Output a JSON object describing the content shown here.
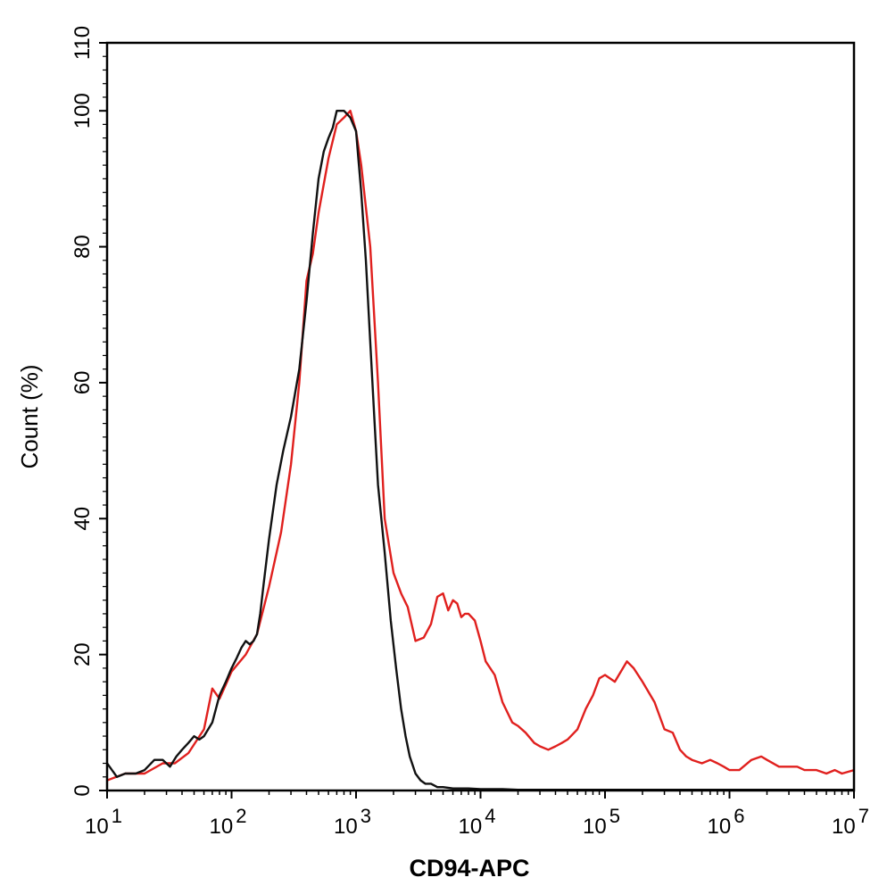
{
  "chart_data": {
    "type": "line",
    "xlabel": "CD94-APC",
    "ylabel": "Count (%)",
    "x_scale": "log",
    "xlim": [
      10,
      10000000
    ],
    "ylim": [
      0,
      110
    ],
    "grid": false,
    "x_ticks": [
      {
        "value": 10,
        "base": "10",
        "exp": "1"
      },
      {
        "value": 100,
        "base": "10",
        "exp": "2"
      },
      {
        "value": 1000,
        "base": "10",
        "exp": "3"
      },
      {
        "value": 10000,
        "base": "10",
        "exp": "4"
      },
      {
        "value": 100000,
        "base": "10",
        "exp": "5"
      },
      {
        "value": 1000000,
        "base": "10",
        "exp": "6"
      },
      {
        "value": 10000000,
        "base": "10",
        "exp": "7"
      }
    ],
    "y_ticks": [
      "0",
      "20",
      "40",
      "60",
      "80",
      "100",
      "110"
    ],
    "series": [
      {
        "color": "#e0201e",
        "x": [
          10,
          14,
          20,
          28,
          35,
          45,
          60,
          70,
          80,
          100,
          130,
          160,
          200,
          250,
          300,
          350,
          400,
          450,
          500,
          600,
          700,
          800,
          900,
          1000,
          1100,
          1300,
          1500,
          1700,
          2000,
          2300,
          2600,
          3000,
          3500,
          4000,
          4500,
          5000,
          5500,
          6000,
          6500,
          7000,
          7500,
          8000,
          9000,
          10000,
          11000,
          13000,
          15000,
          18000,
          20000,
          23000,
          27000,
          30000,
          35000,
          40000,
          45000,
          50000,
          60000,
          70000,
          80000,
          90000,
          100000,
          120000,
          150000,
          170000,
          200000,
          250000,
          300000,
          350000,
          400000,
          450000,
          500000,
          600000,
          700000,
          800000,
          900000,
          1000000,
          1200000,
          1500000,
          1800000,
          2000000,
          2500000,
          3000000,
          3500000,
          4000000,
          5000000,
          6000000,
          7000000,
          8000000,
          10000000
        ],
        "values": [
          1.5,
          2.5,
          2.5,
          4.0,
          4.0,
          5.5,
          9.0,
          15.0,
          13.5,
          17.5,
          20.0,
          23.0,
          30.0,
          38.0,
          48.0,
          60.0,
          75.0,
          79.0,
          85.0,
          93.0,
          98.0,
          99.0,
          100.0,
          97.0,
          92.0,
          80.0,
          60.0,
          40.0,
          32.0,
          29.0,
          27.0,
          22.0,
          22.5,
          24.5,
          28.5,
          29.0,
          26.5,
          28.0,
          27.5,
          25.5,
          26.0,
          26.0,
          25.0,
          22.0,
          19.0,
          17.0,
          13.0,
          10.0,
          9.5,
          8.5,
          7.0,
          6.5,
          6.0,
          6.5,
          7.0,
          7.5,
          9.0,
          12.0,
          14.0,
          16.5,
          17.0,
          16.0,
          19.0,
          18.0,
          16.0,
          13.0,
          9.0,
          8.5,
          6.0,
          5.0,
          4.5,
          4.0,
          4.5,
          4.0,
          3.5,
          3.0,
          3.0,
          4.5,
          5.0,
          4.5,
          3.5,
          3.5,
          3.5,
          3.0,
          3.0,
          2.5,
          3.0,
          2.5,
          3.0
        ]
      },
      {
        "color": "#111111",
        "x": [
          10,
          12,
          14,
          17,
          20,
          24,
          28,
          32,
          36,
          40,
          45,
          50,
          55,
          60,
          70,
          80,
          90,
          100,
          110,
          120,
          130,
          140,
          150,
          160,
          170,
          180,
          200,
          230,
          260,
          300,
          350,
          400,
          450,
          500,
          550,
          600,
          650,
          700,
          750,
          800,
          900,
          1000,
          1100,
          1200,
          1300,
          1400,
          1500,
          1700,
          1900,
          2100,
          2300,
          2500,
          2700,
          3000,
          3300,
          3600,
          4000,
          4500,
          5000,
          6000,
          7000,
          8000,
          10000,
          15000,
          20000,
          30000,
          50000,
          100000,
          200000,
          500000,
          1000000,
          2000000,
          5000000,
          10000000
        ],
        "values": [
          4.0,
          2.0,
          2.5,
          2.5,
          3.0,
          4.5,
          4.5,
          3.5,
          5.0,
          6.0,
          7.0,
          8.0,
          7.5,
          8.0,
          10.0,
          14.0,
          16.0,
          18.0,
          19.5,
          21.0,
          22.0,
          21.5,
          22.0,
          23.0,
          26.0,
          30.0,
          37.0,
          45.0,
          50.0,
          55.0,
          62.0,
          72.0,
          82.0,
          90.0,
          94.0,
          96.0,
          97.5,
          100.0,
          100.0,
          100.0,
          99.0,
          97.0,
          88.0,
          78.0,
          66.0,
          55.0,
          45.0,
          35.0,
          25.0,
          18.0,
          12.0,
          8.0,
          5.0,
          2.5,
          1.5,
          1.0,
          1.0,
          0.5,
          0.5,
          0.3,
          0.3,
          0.3,
          0.2,
          0.2,
          0.1,
          0.1,
          0.1,
          0.1,
          0.1,
          0.1,
          0.1,
          0.1,
          0.1,
          0.1
        ]
      }
    ]
  }
}
